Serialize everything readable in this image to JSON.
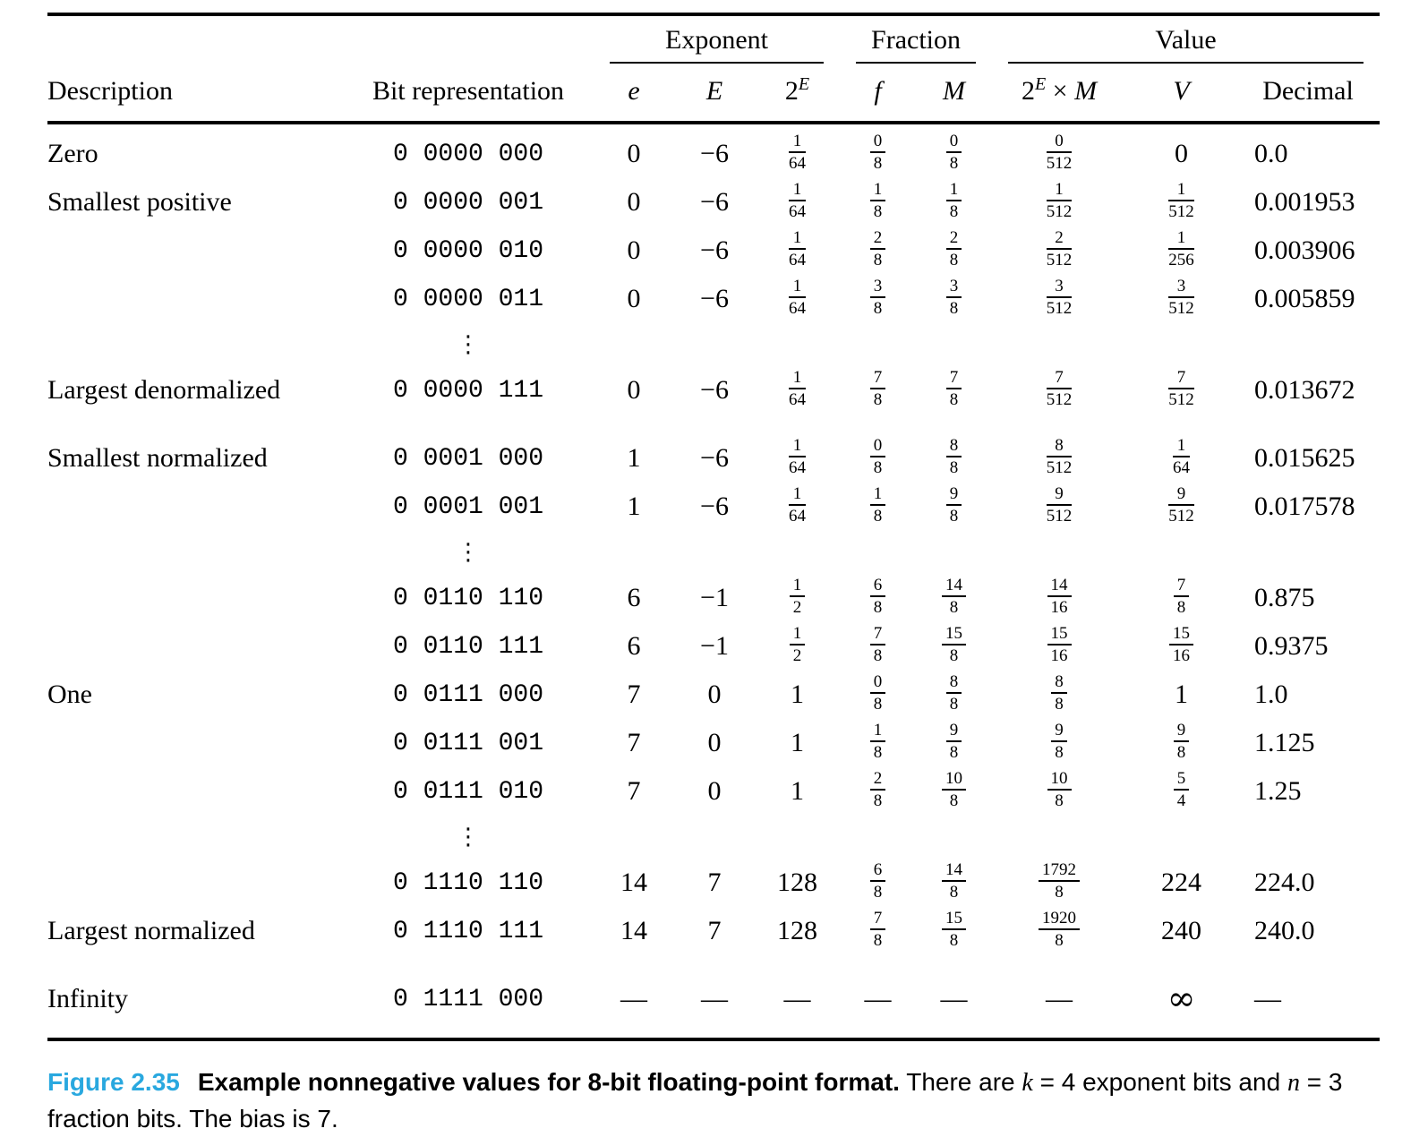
{
  "table": {
    "groups": [
      {
        "label": "",
        "span": 2
      },
      {
        "label": "Exponent",
        "span": 3
      },
      {
        "label": "Fraction",
        "span": 2
      },
      {
        "label": "Value",
        "span": 3
      }
    ],
    "columns": [
      {
        "name": "description",
        "label_parts": [
          {
            "t": "Description"
          }
        ]
      },
      {
        "name": "bits",
        "label_parts": [
          {
            "t": "Bit representation"
          }
        ]
      },
      {
        "name": "e",
        "label_parts": [
          {
            "t": "e",
            "italic": true
          }
        ]
      },
      {
        "name": "E",
        "label_parts": [
          {
            "t": "E",
            "italic": true
          }
        ]
      },
      {
        "name": "twoE",
        "label_parts": [
          {
            "t": "2"
          },
          {
            "t": "E",
            "sup": true,
            "italic": true
          }
        ]
      },
      {
        "name": "f",
        "label_parts": [
          {
            "t": "f",
            "italic": true
          }
        ]
      },
      {
        "name": "M",
        "label_parts": [
          {
            "t": "M",
            "italic": true
          }
        ]
      },
      {
        "name": "prod",
        "label_parts": [
          {
            "t": "2"
          },
          {
            "t": "E",
            "sup": true,
            "italic": true
          },
          {
            "t": " × "
          },
          {
            "t": "M",
            "italic": true
          }
        ]
      },
      {
        "name": "V",
        "label_parts": [
          {
            "t": "V",
            "italic": true
          }
        ]
      },
      {
        "name": "decimal",
        "label_parts": [
          {
            "t": "Decimal"
          }
        ]
      }
    ],
    "ellipsis": "⋮",
    "rows": [
      {
        "type": "data",
        "description": "Zero",
        "bits": "0 0000 000",
        "e": "0",
        "E": "−6",
        "twoE": "1/64",
        "f": "0/8",
        "M": "0/8",
        "prod": "0/512",
        "V": "0",
        "decimal": "0.0"
      },
      {
        "type": "data",
        "description": "Smallest positive",
        "bits": "0 0000 001",
        "e": "0",
        "E": "−6",
        "twoE": "1/64",
        "f": "1/8",
        "M": "1/8",
        "prod": "1/512",
        "V": "1/512",
        "decimal": "0.001953"
      },
      {
        "type": "data",
        "description": "",
        "bits": "0 0000 010",
        "e": "0",
        "E": "−6",
        "twoE": "1/64",
        "f": "2/8",
        "M": "2/8",
        "prod": "2/512",
        "V": "1/256",
        "decimal": "0.003906"
      },
      {
        "type": "data",
        "description": "",
        "bits": "0 0000 011",
        "e": "0",
        "E": "−6",
        "twoE": "1/64",
        "f": "3/8",
        "M": "3/8",
        "prod": "3/512",
        "V": "3/512",
        "decimal": "0.005859"
      },
      {
        "type": "dots"
      },
      {
        "type": "data",
        "description": "Largest denormalized",
        "bits": "0 0000 111",
        "e": "0",
        "E": "−6",
        "twoE": "1/64",
        "f": "7/8",
        "M": "7/8",
        "prod": "7/512",
        "V": "7/512",
        "decimal": "0.013672"
      },
      {
        "type": "data",
        "gap": true,
        "description": "Smallest normalized",
        "bits": "0 0001 000",
        "e": "1",
        "E": "−6",
        "twoE": "1/64",
        "f": "0/8",
        "M": "8/8",
        "prod": "8/512",
        "V": "1/64",
        "decimal": "0.015625"
      },
      {
        "type": "data",
        "description": "",
        "bits": "0 0001 001",
        "e": "1",
        "E": "−6",
        "twoE": "1/64",
        "f": "1/8",
        "M": "9/8",
        "prod": "9/512",
        "V": "9/512",
        "decimal": "0.017578"
      },
      {
        "type": "dots"
      },
      {
        "type": "data",
        "description": "",
        "bits": "0 0110 110",
        "e": "6",
        "E": "−1",
        "twoE": "1/2",
        "f": "6/8",
        "M": "14/8",
        "prod": "14/16",
        "V": "7/8",
        "decimal": "0.875"
      },
      {
        "type": "data",
        "description": "",
        "bits": "0 0110 111",
        "e": "6",
        "E": "−1",
        "twoE": "1/2",
        "f": "7/8",
        "M": "15/8",
        "prod": "15/16",
        "V": "15/16",
        "decimal": "0.9375"
      },
      {
        "type": "data",
        "description": "One",
        "bits": "0 0111 000",
        "e": "7",
        "E": "0",
        "twoE": "1",
        "f": "0/8",
        "M": "8/8",
        "prod": "8/8",
        "V": "1",
        "decimal": "1.0"
      },
      {
        "type": "data",
        "description": "",
        "bits": "0 0111 001",
        "e": "7",
        "E": "0",
        "twoE": "1",
        "f": "1/8",
        "M": "9/8",
        "prod": "9/8",
        "V": "9/8",
        "decimal": "1.125"
      },
      {
        "type": "data",
        "description": "",
        "bits": "0 0111 010",
        "e": "7",
        "E": "0",
        "twoE": "1",
        "f": "2/8",
        "M": "10/8",
        "prod": "10/8",
        "V": "5/4",
        "decimal": "1.25"
      },
      {
        "type": "dots"
      },
      {
        "type": "data",
        "description": "",
        "bits": "0 1110 110",
        "e": "14",
        "E": "7",
        "twoE": "128",
        "f": "6/8",
        "M": "14/8",
        "prod": "1792/8",
        "V": "224",
        "decimal": "224.0"
      },
      {
        "type": "data",
        "description": "Largest normalized",
        "bits": "0 1110 111",
        "e": "14",
        "E": "7",
        "twoE": "128",
        "f": "7/8",
        "M": "15/8",
        "prod": "1920/8",
        "V": "240",
        "decimal": "240.0"
      },
      {
        "type": "data",
        "gap": true,
        "description": "Infinity",
        "bits": "0 1111 000",
        "e": "—",
        "E": "—",
        "twoE": "—",
        "f": "—",
        "M": "—",
        "prod": "—",
        "V": "∞",
        "decimal": "—"
      }
    ]
  },
  "caption": {
    "figure_label": "Figure 2.35",
    "title": "Example nonnegative values for 8-bit floating-point format.",
    "accent_color": "#29a8df",
    "segments": [
      {
        "text": " There are ",
        "style": "plain"
      },
      {
        "text": "k",
        "style": "italic"
      },
      {
        "text": " = 4 exponent bits and ",
        "style": "plain"
      },
      {
        "text": "n",
        "style": "italic"
      },
      {
        "text": " = 3 fraction bits. The bias is 7.",
        "style": "plain"
      }
    ]
  }
}
